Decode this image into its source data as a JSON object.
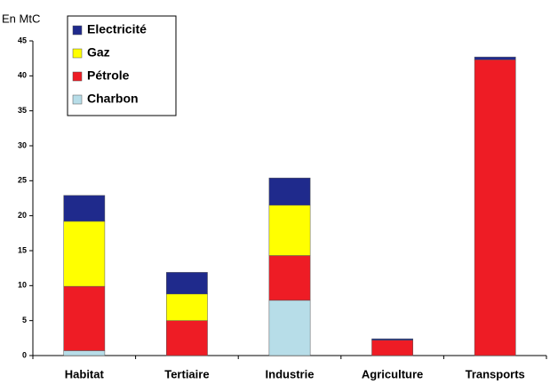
{
  "chart_data": {
    "type": "stacked_bar",
    "y_label": "En MtC",
    "categories": [
      "Habitat",
      "Tertiaire",
      "Industrie",
      "Agriculture",
      "Transports"
    ],
    "series": [
      {
        "name": "Charbon",
        "color": "#b7dde8",
        "values": [
          0.7,
          0,
          7.9,
          0,
          0
        ]
      },
      {
        "name": "Pétrole",
        "color": "#ee1c25",
        "values": [
          9.2,
          5.0,
          6.4,
          2.2,
          42.3
        ]
      },
      {
        "name": "Gaz",
        "color": "#ffff00",
        "values": [
          9.3,
          3.8,
          7.2,
          0,
          0
        ]
      },
      {
        "name": "Electricité",
        "color": "#1f2a8c",
        "values": [
          3.7,
          3.1,
          3.9,
          0.2,
          0.4
        ]
      }
    ],
    "ylim": [
      0,
      45
    ],
    "yticks": [
      0,
      5,
      10,
      15,
      20,
      25,
      30,
      35,
      40,
      45
    ],
    "grid": false
  }
}
